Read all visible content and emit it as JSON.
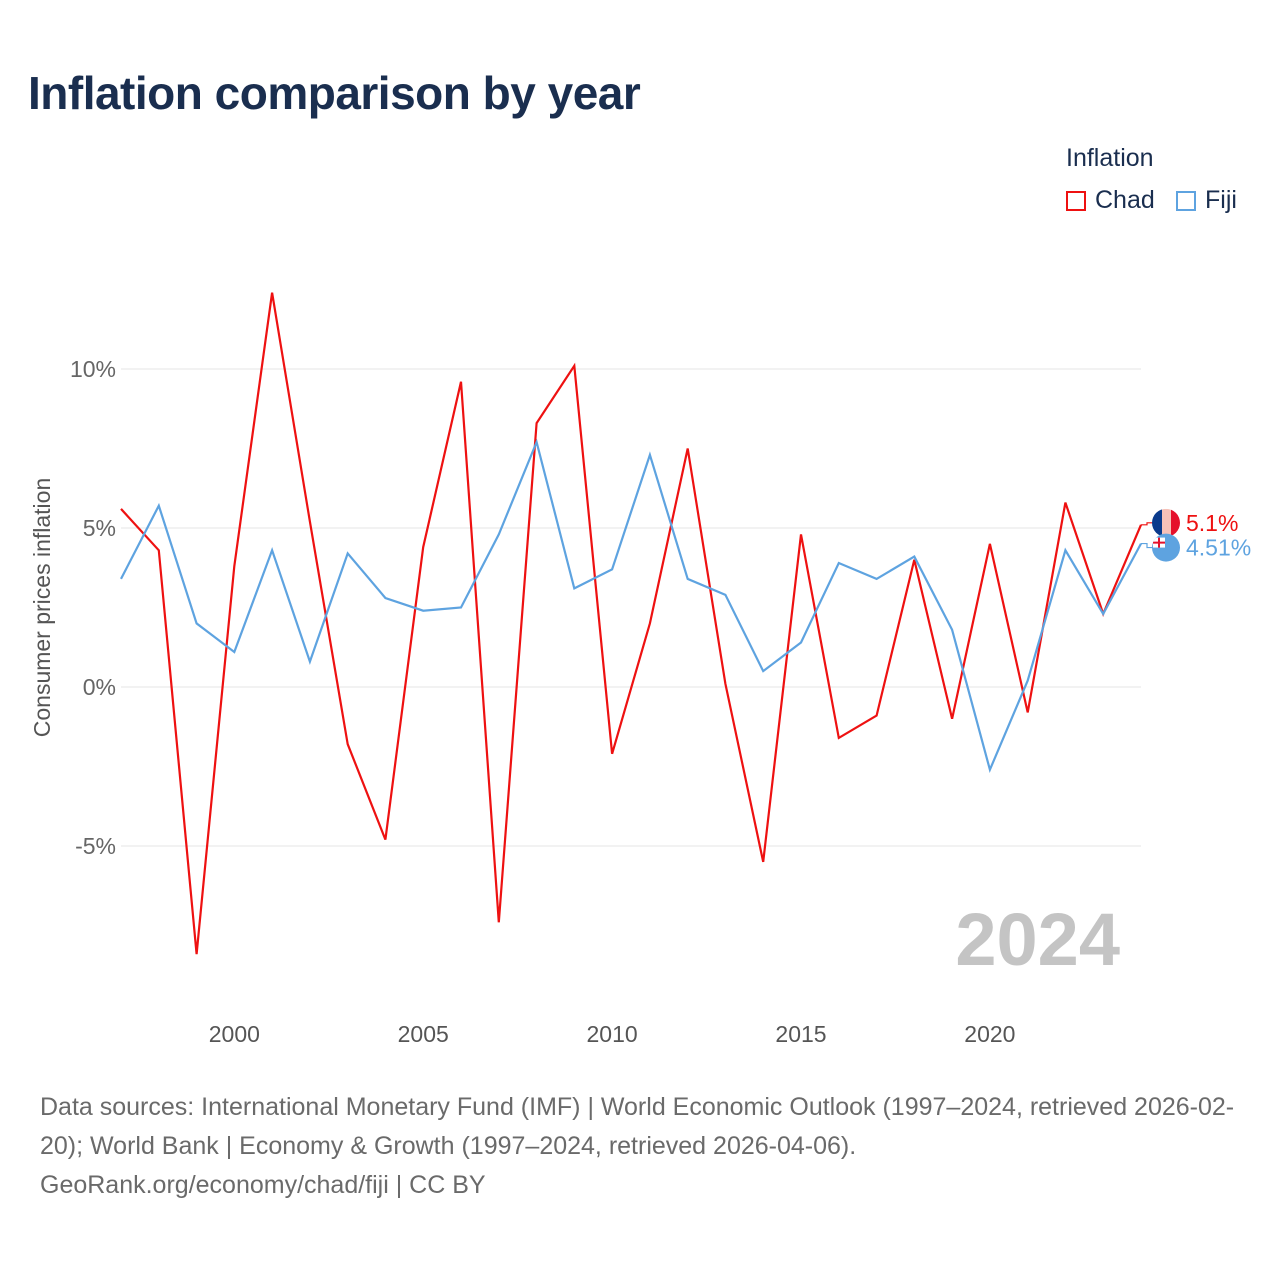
{
  "title": "Inflation comparison by year",
  "legend": {
    "title": "Inflation",
    "items": [
      {
        "name": "Chad",
        "color": "#ee1111"
      },
      {
        "name": "Fiji",
        "color": "#5ea3e0"
      }
    ]
  },
  "footer": {
    "line1": "Data sources: International Monetary Fund (IMF) | World Economic Outlook (1997–2024, retrieved 2026-02-20); World Bank | Economy & Growth (1997–2024, retrieved 2026-04-06).",
    "line2": "GeoRank.org/economy/chad/fiji | CC BY"
  },
  "chart_data": {
    "type": "line",
    "title": "Inflation comparison by year",
    "ylabel": "Consumer prices inflation",
    "xlabel": "",
    "year_label": "2024",
    "x": [
      1997,
      1998,
      1999,
      2000,
      2001,
      2002,
      2003,
      2004,
      2005,
      2006,
      2007,
      2008,
      2009,
      2010,
      2011,
      2012,
      2013,
      2014,
      2015,
      2016,
      2017,
      2018,
      2019,
      2020,
      2021,
      2022,
      2023,
      2024
    ],
    "xlim": [
      1997,
      2024
    ],
    "ylim": [
      -10,
      14
    ],
    "yticks": [
      -5,
      0,
      5,
      10
    ],
    "ytick_labels": [
      "-5%",
      "0%",
      "5%",
      "10%"
    ],
    "xticks": [
      2000,
      2005,
      2010,
      2015,
      2020
    ],
    "xtick_labels": [
      "2000",
      "2005",
      "2010",
      "2015",
      "2020"
    ],
    "series": [
      {
        "name": "Chad",
        "color": "#ee1111",
        "end_label": "5.1%",
        "values": [
          5.6,
          4.3,
          -8.4,
          3.8,
          12.4,
          5.2,
          -1.8,
          -4.8,
          4.4,
          9.6,
          -7.4,
          8.3,
          10.1,
          -2.1,
          2.0,
          7.5,
          0.1,
          -5.5,
          4.8,
          -1.6,
          -0.9,
          4.0,
          -1.0,
          4.5,
          -0.8,
          5.8,
          2.3,
          5.1
        ]
      },
      {
        "name": "Fiji",
        "color": "#5ea3e0",
        "end_label": "4.51%",
        "values": [
          3.4,
          5.7,
          2.0,
          1.1,
          4.3,
          0.8,
          4.2,
          2.8,
          2.4,
          2.5,
          4.8,
          7.7,
          3.1,
          3.7,
          7.3,
          3.4,
          2.9,
          0.5,
          1.4,
          3.9,
          3.4,
          4.1,
          1.8,
          -2.6,
          0.2,
          4.3,
          2.3,
          4.51
        ]
      }
    ]
  }
}
